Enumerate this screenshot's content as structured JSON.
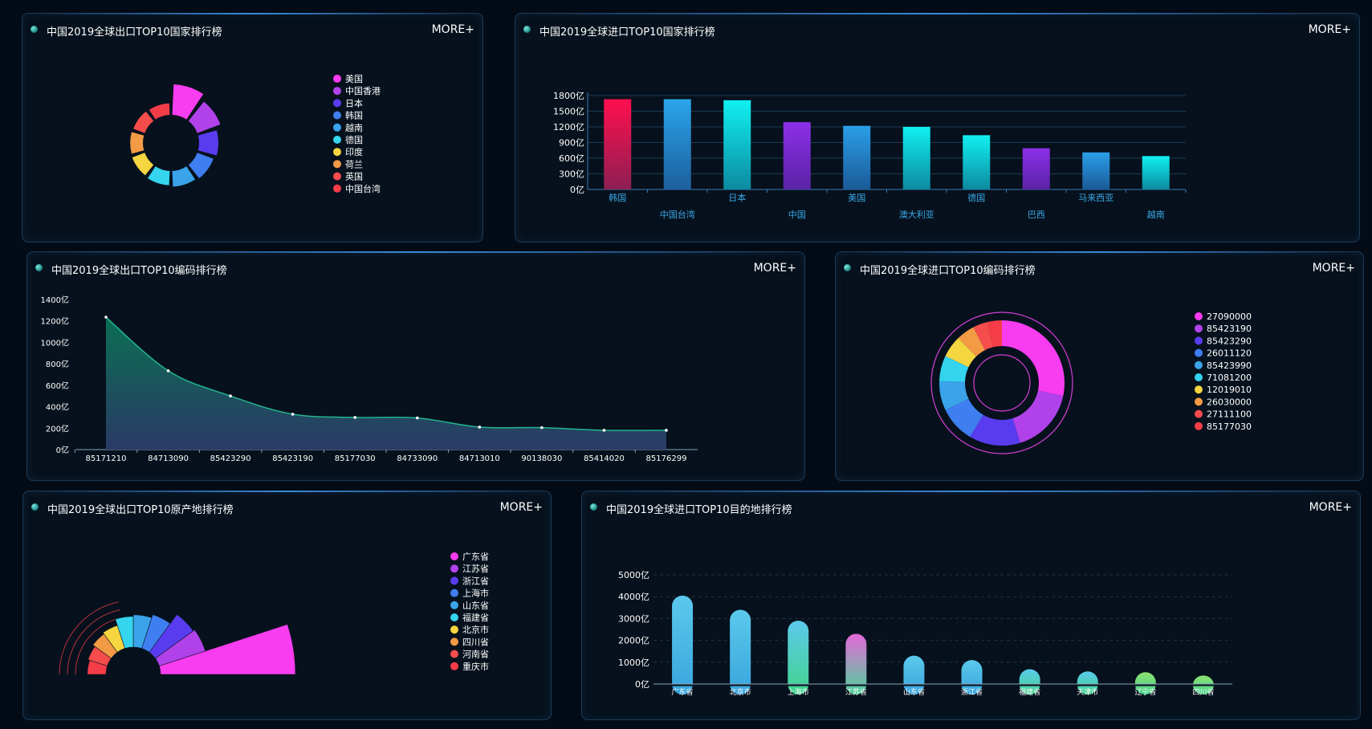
{
  "panels": {
    "p1": {
      "title": "中国2019全球出口TOP10国家排行榜",
      "more": "MORE+"
    },
    "p2": {
      "title": "中国2019全球进口TOP10国家排行榜",
      "more": "MORE+"
    },
    "p3": {
      "title": "中国2019全球出口TOP10编码排行榜",
      "more": "MORE+"
    },
    "p4": {
      "title": "中国2019全球进口TOP10编码排行榜",
      "more": "MORE+"
    },
    "p5": {
      "title": "中国2019全球出口TOP10原产地排行榜",
      "more": "MORE+"
    },
    "p6": {
      "title": "中国2019全球进口TOP10目的地排行榜",
      "more": "MORE+"
    }
  },
  "palette": [
    "#f83cf0",
    "#b142ea",
    "#5a3cf0",
    "#3f7ef0",
    "#3aa3ea",
    "#35d4ef",
    "#f5d540",
    "#f39a45",
    "#f54c4c",
    "#f53d48"
  ],
  "chart_data": [
    {
      "id": "export_country",
      "type": "pie",
      "subtype": "rose",
      "categories": [
        "美国",
        "中国香港",
        "日本",
        "韩国",
        "越南",
        "德国",
        "印度",
        "荷兰",
        "英国",
        "中国台湾"
      ],
      "values": [
        100,
        80,
        62,
        55,
        50,
        45,
        42,
        40,
        38,
        36
      ],
      "legend": "right"
    },
    {
      "id": "import_country",
      "type": "bar",
      "categories": [
        "韩国",
        "中国台湾",
        "日本",
        "中国",
        "美国",
        "澳大利亚",
        "德国",
        "巴西",
        "马来西亚",
        "越南"
      ],
      "values": [
        1730,
        1730,
        1710,
        1290,
        1220,
        1200,
        1040,
        790,
        710,
        640
      ],
      "ylim": [
        0,
        1800
      ],
      "yticks": [
        "0亿",
        "300亿",
        "600亿",
        "900亿",
        "1200亿",
        "1500亿",
        "1800亿"
      ],
      "bar_colors": [
        [
          "#ff0f4f",
          "#8d1f52"
        ],
        [
          "#2aa5ea",
          "#1c5f9e"
        ],
        [
          "#10f0f0",
          "#0d8aa0"
        ],
        [
          "#8d2fe8",
          "#5a23a6"
        ],
        [
          "#2a9fe8",
          "#1b5a98"
        ],
        [
          "#10f0f0",
          "#0d8aa0"
        ],
        [
          "#10f0f0",
          "#0d8aa0"
        ],
        [
          "#8d2fe8",
          "#5a23a6"
        ],
        [
          "#2a9fe8",
          "#1b5a98"
        ],
        [
          "#10f0f0",
          "#0d8aa0"
        ]
      ]
    },
    {
      "id": "export_code",
      "type": "area",
      "categories": [
        "85171210",
        "84713090",
        "85423290",
        "85423190",
        "85177030",
        "84733090",
        "84713010",
        "90138030",
        "85414020",
        "85176299"
      ],
      "values": [
        1235,
        735,
        500,
        330,
        300,
        295,
        210,
        205,
        180,
        180
      ],
      "ylim": [
        0,
        1400
      ],
      "yticks": [
        "0亿",
        "200亿",
        "400亿",
        "600亿",
        "800亿",
        "1000亿",
        "1200亿",
        "1400亿"
      ]
    },
    {
      "id": "import_code",
      "type": "pie",
      "subtype": "donut",
      "categories": [
        "27090000",
        "85423190",
        "85423290",
        "26011120",
        "85423990",
        "71081200",
        "12019010",
        "26030000",
        "27111100",
        "85177030"
      ],
      "values": [
        30,
        18,
        14,
        10,
        8,
        7,
        6,
        5,
        4,
        4
      ],
      "legend": "right"
    },
    {
      "id": "export_origin",
      "type": "pie",
      "subtype": "half-rose",
      "categories": [
        "广东省",
        "江苏省",
        "浙江省",
        "上海市",
        "山东省",
        "福建省",
        "北京市",
        "四川省",
        "河南省",
        "重庆市"
      ],
      "values": [
        100,
        60,
        58,
        44,
        40,
        38,
        30,
        28,
        25,
        23
      ],
      "legend": "right"
    },
    {
      "id": "import_destination",
      "type": "bar",
      "categories": [
        "广东省",
        "北京市",
        "上海市",
        "江苏省",
        "山东省",
        "浙江省",
        "福建省",
        "天津市",
        "辽宁省",
        "四川省"
      ],
      "values": [
        4050,
        3400,
        2900,
        2300,
        1300,
        1100,
        680,
        580,
        540,
        390
      ],
      "ylim": [
        0,
        5000
      ],
      "yticks": [
        "0亿",
        "1000亿",
        "2000亿",
        "3000亿",
        "4000亿",
        "5000亿"
      ],
      "bar_colors": [
        [
          "#5bc9ec",
          "#39a5dd"
        ],
        [
          "#5bc9ec",
          "#39a5dd"
        ],
        [
          "#5bc9ec",
          "#44d48c"
        ],
        [
          "#e468d8",
          "#4dd39a"
        ],
        [
          "#5bc9ec",
          "#39a5dd"
        ],
        [
          "#5bc9ec",
          "#39a5dd"
        ],
        [
          "#5bc9ec",
          "#44d48c"
        ],
        [
          "#5bc9ec",
          "#44d48c"
        ],
        [
          "#8ee070",
          "#44d48c"
        ],
        [
          "#8ee070",
          "#44d48c"
        ]
      ]
    }
  ]
}
